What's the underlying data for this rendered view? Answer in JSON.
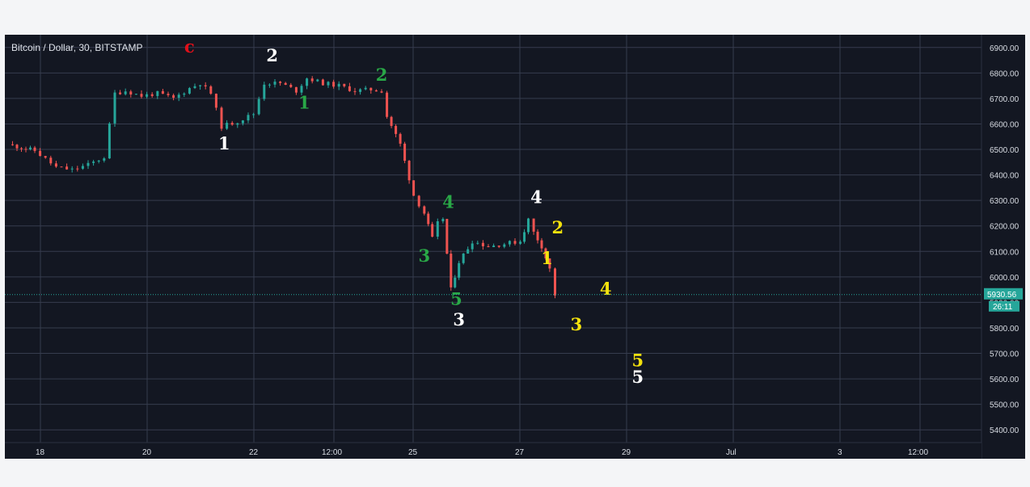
{
  "chart_data": {
    "type": "candlestick",
    "title": "Bitcoin / Dollar, 30, BITSTAMP",
    "symbol": "Bitcoin / Dollar",
    "interval": "30",
    "exchange": "BITSTAMP",
    "ylim": [
      5350,
      6950
    ],
    "y_ticks": [
      "6900.00",
      "6800.00",
      "6700.00",
      "6600.00",
      "6500.00",
      "6400.00",
      "6300.00",
      "6200.00",
      "6100.00",
      "6000.00",
      "5900.00",
      "5800.00",
      "5700.00",
      "5600.00",
      "5500.00",
      "5400.00"
    ],
    "x_ticks": [
      "18",
      "20",
      "22",
      "12:00",
      "25",
      "27",
      "29",
      "Jul",
      "3",
      "12:00"
    ],
    "last_price": "5930.56",
    "countdown": "26:11",
    "grid": true,
    "price_path": [
      [
        0.0,
        6520
      ],
      [
        0.5,
        6495
      ],
      [
        0.9,
        6430
      ],
      [
        1.2,
        6420
      ],
      [
        1.5,
        6440
      ],
      [
        1.8,
        6470
      ],
      [
        2.0,
        6720
      ],
      [
        2.2,
        6730
      ],
      [
        2.5,
        6710
      ],
      [
        2.8,
        6720
      ],
      [
        3.1,
        6700
      ],
      [
        3.4,
        6740
      ],
      [
        3.6,
        6760
      ],
      [
        3.8,
        6720
      ],
      [
        4.0,
        6590
      ],
      [
        4.3,
        6610
      ],
      [
        4.6,
        6640
      ],
      [
        4.8,
        6760
      ],
      [
        5.1,
        6760
      ],
      [
        5.4,
        6730
      ],
      [
        5.6,
        6780
      ],
      [
        5.9,
        6760
      ],
      [
        6.2,
        6750
      ],
      [
        6.5,
        6730
      ],
      [
        6.8,
        6735
      ],
      [
        7.0,
        6730
      ],
      [
        7.1,
        6630
      ],
      [
        7.35,
        6520
      ],
      [
        7.6,
        6320
      ],
      [
        7.8,
        6250
      ],
      [
        7.95,
        6150
      ],
      [
        8.05,
        6210
      ],
      [
        8.15,
        6230
      ],
      [
        8.3,
        5950
      ],
      [
        8.45,
        6060
      ],
      [
        8.7,
        6140
      ],
      [
        9.0,
        6120
      ],
      [
        9.3,
        6130
      ],
      [
        9.6,
        6140
      ],
      [
        9.75,
        6225
      ],
      [
        9.85,
        6175
      ],
      [
        10.0,
        6120
      ],
      [
        10.15,
        6030
      ],
      [
        10.25,
        5930
      ]
    ],
    "wave_labels": [
      {
        "text": "c",
        "x": 3.4,
        "y": 6880,
        "color": "#e0101a"
      },
      {
        "text": "2",
        "x": 4.95,
        "y": 6845,
        "color": "#ffffff"
      },
      {
        "text": "1",
        "x": 4.05,
        "y": 6500,
        "color": "#ffffff"
      },
      {
        "text": "1",
        "x": 5.55,
        "y": 6660,
        "color": "#29a847"
      },
      {
        "text": "2",
        "x": 7.0,
        "y": 6770,
        "color": "#29a847"
      },
      {
        "text": "4",
        "x": 8.25,
        "y": 6270,
        "color": "#29a847"
      },
      {
        "text": "3",
        "x": 7.8,
        "y": 6060,
        "color": "#29a847"
      },
      {
        "text": "5",
        "x": 8.4,
        "y": 5890,
        "color": "#29a847"
      },
      {
        "text": "3",
        "x": 8.45,
        "y": 5810,
        "color": "#ffffff"
      },
      {
        "text": "4",
        "x": 9.9,
        "y": 6290,
        "color": "#ffffff"
      },
      {
        "text": "2",
        "x": 10.3,
        "y": 6170,
        "color": "#f4e20d"
      },
      {
        "text": "1",
        "x": 10.1,
        "y": 6050,
        "color": "#f4e20d"
      },
      {
        "text": "4",
        "x": 11.2,
        "y": 5930,
        "color": "#f4e20d"
      },
      {
        "text": "3",
        "x": 10.65,
        "y": 5790,
        "color": "#f4e20d"
      },
      {
        "text": "5",
        "x": 11.8,
        "y": 5650,
        "color": "#f4e20d"
      },
      {
        "text": "5",
        "x": 11.8,
        "y": 5585,
        "color": "#ffffff"
      }
    ],
    "colors": {
      "background": "#131722",
      "grid": "#363c4e",
      "up": "#26a69a",
      "down": "#ef5350",
      "last_price": "#26a69a"
    }
  }
}
